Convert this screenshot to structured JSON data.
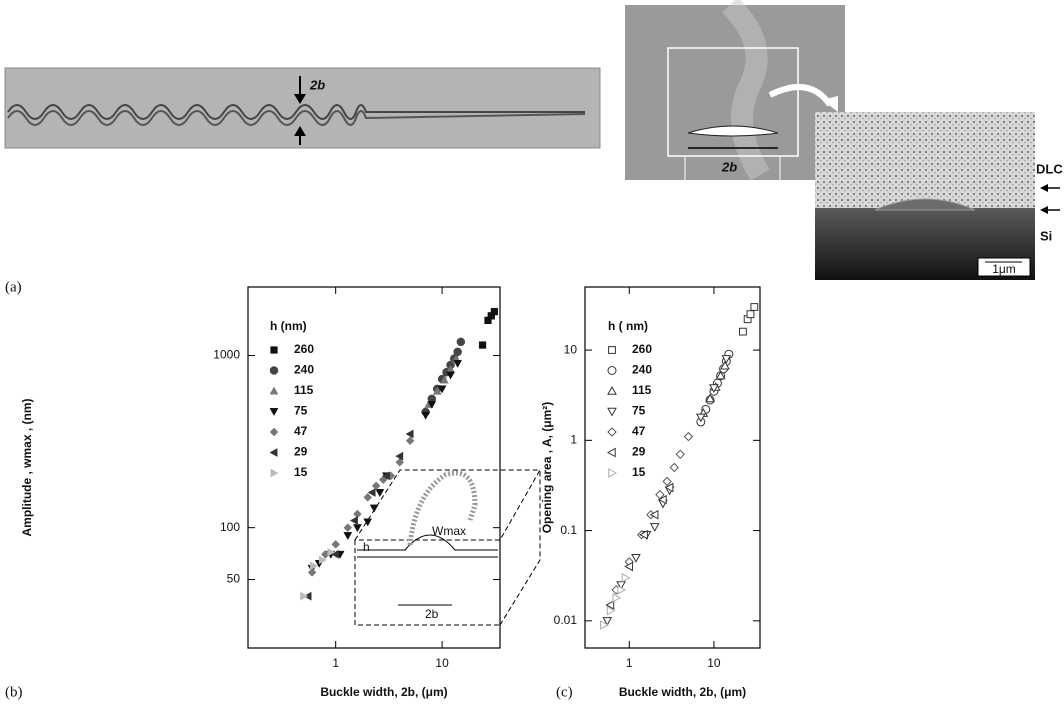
{
  "panel_a": {
    "label": "(a)",
    "annotations": {
      "width_left": "2b",
      "width_right": "2b",
      "film": "DLC",
      "substrate": "Si",
      "scale_bar": "1μm"
    }
  },
  "chart_data": [
    {
      "type": "scatter",
      "panel_label": "(b)",
      "xlabel": "Buckle width, 2b, (μm)",
      "ylabel": "Amplitude , wmax , (nm)",
      "xscale": "log",
      "yscale": "log",
      "xlim": [
        0.15,
        35
      ],
      "ylim": [
        20,
        2500
      ],
      "xticks": [
        1,
        10
      ],
      "yticks": [
        50,
        100,
        1000
      ],
      "legend_title": "h (nm)",
      "legend": "upper left",
      "marker_fill": "filled",
      "inset_labels": [
        "h",
        "Wmax",
        "2b"
      ],
      "series": [
        {
          "name": "260",
          "color": "#111111",
          "marker": "square",
          "x": [
            24,
            27,
            29,
            31
          ],
          "values": [
            1150,
            1600,
            1700,
            1800
          ]
        },
        {
          "name": "240",
          "color": "#444444",
          "marker": "circle",
          "x": [
            7,
            8,
            9,
            10,
            11,
            12,
            13,
            14,
            15
          ],
          "values": [
            470,
            560,
            640,
            730,
            800,
            880,
            960,
            1050,
            1200
          ]
        },
        {
          "name": "115",
          "color": "#777777",
          "marker": "triangle-up",
          "x": [
            7.5,
            9,
            10.5,
            12,
            13.5
          ],
          "values": [
            520,
            620,
            720,
            830,
            950
          ]
        },
        {
          "name": "75",
          "color": "#111111",
          "marker": "triangle-down",
          "x": [
            0.6,
            0.7,
            0.9,
            1.1,
            1.3,
            1.6,
            2.0,
            2.3,
            2.6,
            3.0,
            7,
            8,
            10,
            12,
            14
          ],
          "values": [
            58,
            62,
            70,
            70,
            90,
            100,
            108,
            130,
            160,
            200,
            450,
            520,
            640,
            770,
            900
          ]
        },
        {
          "name": "47",
          "color": "#777777",
          "marker": "diamond",
          "x": [
            0.6,
            0.8,
            1.0,
            1.3,
            1.6,
            2.0,
            2.4,
            2.8,
            3.3,
            4,
            5
          ],
          "values": [
            55,
            70,
            80,
            100,
            120,
            150,
            175,
            190,
            200,
            240,
            320
          ]
        },
        {
          "name": "29",
          "color": "#333333",
          "marker": "triangle-left",
          "x": [
            0.55,
            1.0,
            1.5,
            2.2,
            3.0,
            4.0,
            5.0
          ],
          "values": [
            40,
            70,
            110,
            160,
            200,
            260,
            350
          ]
        },
        {
          "name": "15",
          "color": "#bbbbbb",
          "marker": "triangle-right",
          "x": [
            0.5,
            0.62,
            0.75,
            0.9
          ],
          "values": [
            40,
            60,
            65,
            72
          ]
        }
      ]
    },
    {
      "type": "scatter",
      "panel_label": "(c)",
      "xlabel": "Buckle width, 2b, (μm)",
      "ylabel": "Opening area , A, (μm²)",
      "xscale": "log",
      "yscale": "log",
      "xlim": [
        0.3,
        35
      ],
      "ylim": [
        0.005,
        50
      ],
      "xticks": [
        1,
        10
      ],
      "yticks": [
        0.01,
        0.1,
        1,
        10
      ],
      "legend_title": "h ( nm)",
      "legend": "upper left",
      "marker_fill": "hollow",
      "series": [
        {
          "name": "260",
          "color": "#333333",
          "marker": "square",
          "x": [
            22,
            25,
            27,
            30
          ],
          "values": [
            16,
            22,
            25,
            30
          ]
        },
        {
          "name": "240",
          "color": "#333333",
          "marker": "circle",
          "x": [
            7,
            8,
            9,
            10,
            11,
            12,
            13,
            14,
            15
          ],
          "values": [
            1.6,
            2.2,
            2.8,
            3.5,
            4.3,
            5.2,
            6.2,
            7.5,
            9
          ]
        },
        {
          "name": "115",
          "color": "#333333",
          "marker": "triangle-up",
          "x": [
            7.5,
            9,
            10.5,
            12,
            13.5
          ],
          "values": [
            2,
            2.9,
            3.9,
            5.2,
            6.7
          ]
        },
        {
          "name": "75",
          "color": "#333333",
          "marker": "triangle-down",
          "x": [
            0.55,
            0.8,
            1.2,
            1.6,
            2.0,
            2.5,
            3.0,
            7,
            10,
            14
          ],
          "values": [
            0.01,
            0.025,
            0.05,
            0.09,
            0.11,
            0.2,
            0.28,
            1.8,
            3.8,
            8
          ]
        },
        {
          "name": "47",
          "color": "#555555",
          "marker": "diamond",
          "x": [
            0.7,
            1.0,
            1.4,
            1.8,
            2.3,
            2.8,
            3.4,
            4,
            5
          ],
          "values": [
            0.022,
            0.045,
            0.09,
            0.15,
            0.25,
            0.35,
            0.5,
            0.7,
            1.1
          ]
        },
        {
          "name": "29",
          "color": "#333333",
          "marker": "triangle-left",
          "x": [
            0.6,
            1.0,
            1.5,
            2.0,
            2.5,
            3.0
          ],
          "values": [
            0.015,
            0.04,
            0.09,
            0.15,
            0.22,
            0.3
          ]
        },
        {
          "name": "15",
          "color": "#aaaaaa",
          "marker": "triangle-right",
          "x": [
            0.5,
            0.6,
            0.7,
            0.8,
            0.9
          ],
          "values": [
            0.009,
            0.013,
            0.018,
            0.022,
            0.03
          ]
        }
      ]
    }
  ]
}
